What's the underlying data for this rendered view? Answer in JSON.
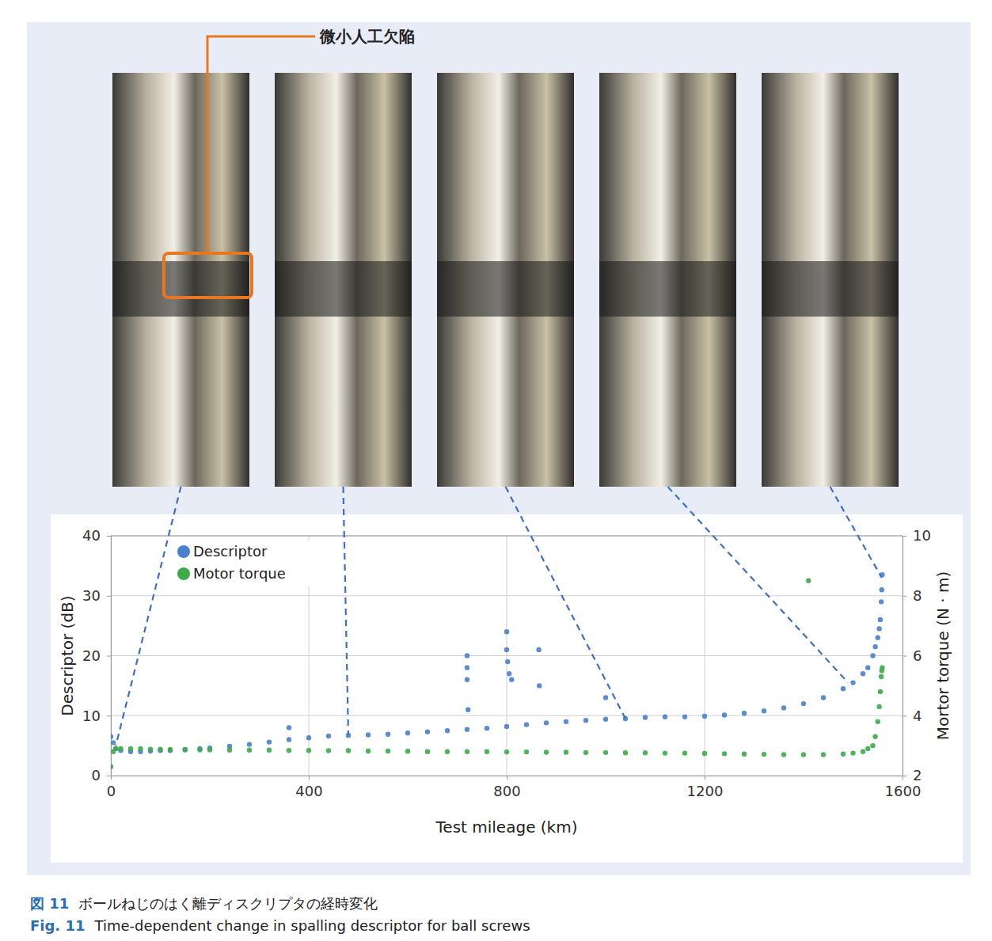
{
  "chart_data": {
    "type": "scatter",
    "annotation": "微小人工欠陥",
    "caption_ja": {
      "label": "図 11",
      "text": "ボールねじのはく離ディスクリプタの経時変化"
    },
    "caption_en": {
      "label": "Fig. 11",
      "text": "Time-dependent change in spalling descriptor for ball screws"
    },
    "x_label": "Test mileage (km)",
    "y_label": "Descriptor (dB)",
    "y2_label": "Mortor torque (N · m)",
    "xlim": [
      0,
      1600
    ],
    "xticks": [
      0,
      400,
      800,
      1200,
      1600
    ],
    "ylim": [
      0,
      40
    ],
    "yticks": [
      0,
      10,
      20,
      30,
      40
    ],
    "y2lim": [
      2,
      10
    ],
    "y2ticks": [
      2,
      4,
      6,
      8,
      10
    ],
    "grid": true,
    "legend": "top-left",
    "marker": "circle",
    "x": [
      0,
      5,
      10,
      20,
      40,
      60,
      80,
      100,
      120,
      150,
      180,
      200,
      240,
      280,
      320,
      360,
      400,
      440,
      480,
      520,
      560,
      600,
      640,
      680,
      720,
      760,
      800,
      840,
      880,
      920,
      960,
      1000,
      1040,
      1080,
      1120,
      1160,
      1200,
      1240,
      1280,
      1320,
      1360,
      1400,
      1440,
      1480,
      1500,
      1520,
      1530,
      1540,
      1545,
      1550,
      1553,
      1555,
      1557,
      1558,
      1559,
      360,
      720,
      720,
      720,
      722,
      800,
      800,
      802,
      805,
      810,
      865,
      866,
      1000,
      1410
    ],
    "series": [
      {
        "name": "Descriptor",
        "color": "#4a7fcb",
        "values": [
          6.5,
          5.5,
          4.5,
          4.2,
          4,
          4,
          4.1,
          4.2,
          4.2,
          4.3,
          4.5,
          4.6,
          4.9,
          5.2,
          5.6,
          6,
          6.3,
          6.6,
          6.7,
          6.8,
          6.9,
          7.1,
          7.3,
          7.5,
          7.7,
          7.9,
          8.2,
          8.5,
          8.8,
          9,
          9.2,
          9.4,
          9.5,
          9.7,
          9.8,
          9.8,
          9.9,
          10.1,
          10.4,
          10.8,
          11.3,
          12,
          13,
          14.5,
          15.5,
          17,
          18,
          20,
          21.5,
          23,
          24.5,
          26,
          29,
          31,
          33.5,
          8,
          20,
          18,
          16,
          11,
          24,
          21,
          19,
          17,
          16,
          21,
          15,
          13,
          null
        ]
      },
      {
        "name": "Motor torque",
        "color": "#3dab4a",
        "axis": "y2",
        "values": [
          2.3,
          2.8,
          2.9,
          2.9,
          2.9,
          2.9,
          2.88,
          2.88,
          2.87,
          2.87,
          2.86,
          2.86,
          2.85,
          2.85,
          2.85,
          2.84,
          2.84,
          2.83,
          2.83,
          2.82,
          2.82,
          2.81,
          2.8,
          2.8,
          2.8,
          2.8,
          2.79,
          2.79,
          2.78,
          2.78,
          2.77,
          2.77,
          2.76,
          2.76,
          2.75,
          2.75,
          2.74,
          2.73,
          2.72,
          2.71,
          2.7,
          2.7,
          2.7,
          2.72,
          2.75,
          2.8,
          2.9,
          3,
          3.3,
          3.8,
          4.3,
          4.8,
          5.3,
          5.5,
          5.6,
          null,
          null,
          null,
          null,
          null,
          null,
          null,
          null,
          null,
          null,
          null,
          null,
          null,
          8.5
        ]
      }
    ],
    "photo_links": [
      {
        "x": 10,
        "y": 5
      },
      {
        "x": 480,
        "y": 6.7
      },
      {
        "x": 1040,
        "y": 9.5
      },
      {
        "x": 1490,
        "y": 15.5
      },
      {
        "x": 1558,
        "y": 33
      }
    ]
  }
}
